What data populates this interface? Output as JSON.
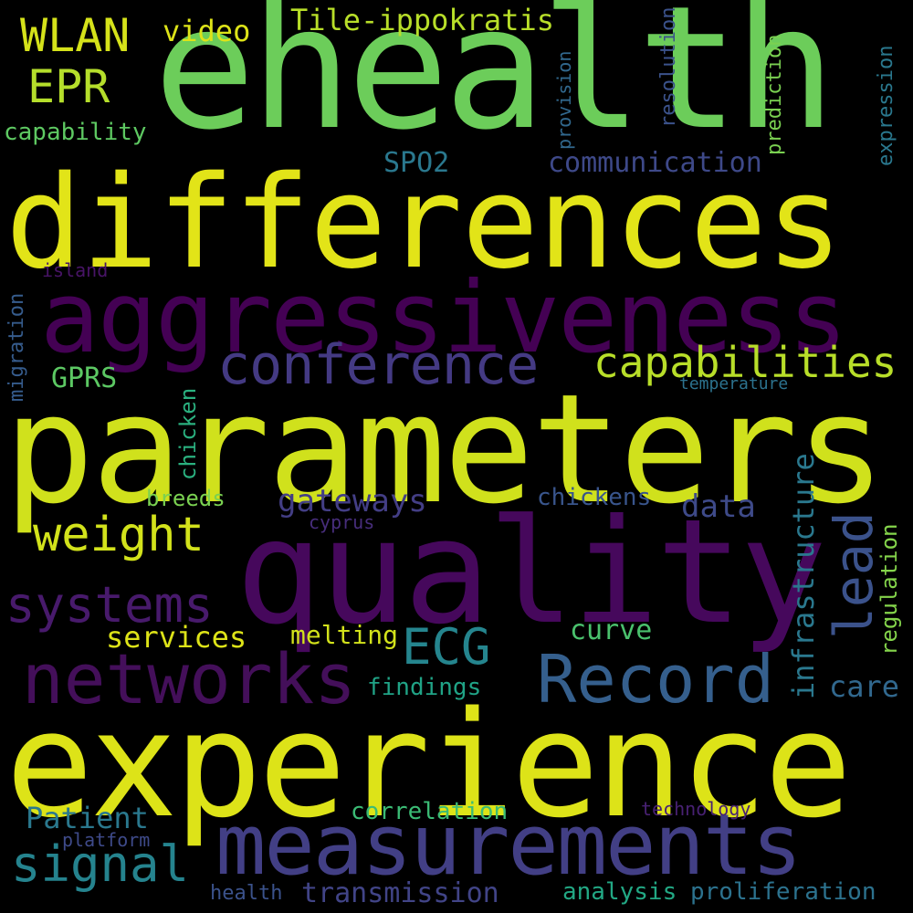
{
  "words": [
    {
      "text": "ehealth",
      "color": "#6ccd5a"
    },
    {
      "text": "differences",
      "color": "#e2e418"
    },
    {
      "text": "aggressiveness",
      "color": "#440154"
    },
    {
      "text": "parameters",
      "color": "#d0e11c"
    },
    {
      "text": "quality",
      "color": "#46085c"
    },
    {
      "text": "experience",
      "color": "#dde318"
    },
    {
      "text": "measurements",
      "color": "#423f85"
    },
    {
      "text": "Record",
      "color": "#355f8d"
    },
    {
      "text": "networks",
      "color": "#440f5a"
    },
    {
      "text": "conference",
      "color": "#443a83"
    },
    {
      "text": "capabilities",
      "color": "#b8de29"
    },
    {
      "text": "systems",
      "color": "#481a6c"
    },
    {
      "text": "weight",
      "color": "#d2e21b"
    },
    {
      "text": "lead",
      "color": "#3b528b"
    },
    {
      "text": "ECG",
      "color": "#25858e"
    },
    {
      "text": "signal",
      "color": "#25838e"
    },
    {
      "text": "WLAN",
      "color": "#d5e21a"
    },
    {
      "text": "EPR",
      "color": "#b5de2b"
    },
    {
      "text": "video",
      "color": "#dde318"
    },
    {
      "text": "Tile-ippokratis",
      "color": "#b8de29"
    },
    {
      "text": "capability",
      "color": "#5ec962"
    },
    {
      "text": "communication",
      "color": "#3e4989"
    },
    {
      "text": "SPO2",
      "color": "#2a788e"
    },
    {
      "text": "GPRS",
      "color": "#5cc863"
    },
    {
      "text": "gateways",
      "color": "#433e85"
    },
    {
      "text": "data",
      "color": "#3e4a89"
    },
    {
      "text": "chickens",
      "color": "#39558c"
    },
    {
      "text": "breeds",
      "color": "#7ad151"
    },
    {
      "text": "cyprus",
      "color": "#472d7b"
    },
    {
      "text": "services",
      "color": "#dde318"
    },
    {
      "text": "melting",
      "color": "#d2e21b"
    },
    {
      "text": "curve",
      "color": "#4ac16d"
    },
    {
      "text": "findings",
      "color": "#20a386"
    },
    {
      "text": "care",
      "color": "#31688e"
    },
    {
      "text": "Patient",
      "color": "#2a788e"
    },
    {
      "text": "correlation",
      "color": "#3bbb75"
    },
    {
      "text": "technology",
      "color": "#482173"
    },
    {
      "text": "platform",
      "color": "#3e4a89"
    },
    {
      "text": "transmission",
      "color": "#414487"
    },
    {
      "text": "health",
      "color": "#3b528b"
    },
    {
      "text": "analysis",
      "color": "#22a884"
    },
    {
      "text": "proliferation",
      "color": "#2c728e"
    },
    {
      "text": "temperature",
      "color": "#2c728e"
    },
    {
      "text": "island",
      "color": "#481467"
    },
    {
      "text": "migration",
      "color": "#365c8d"
    },
    {
      "text": "chicken",
      "color": "#2ab07f"
    },
    {
      "text": "infrastructure",
      "color": "#2a788e"
    },
    {
      "text": "regulation",
      "color": "#84d44b"
    },
    {
      "text": "provision",
      "color": "#31688e"
    },
    {
      "text": "resolution",
      "color": "#3b528b"
    },
    {
      "text": "prediction",
      "color": "#7ad151"
    },
    {
      "text": "expression",
      "color": "#2a788e"
    }
  ]
}
